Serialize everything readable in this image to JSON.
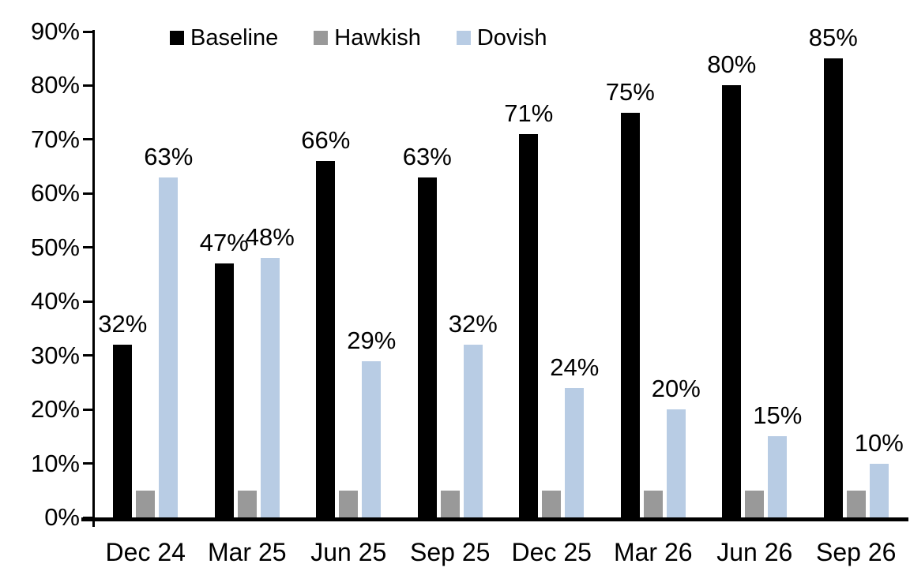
{
  "chart_data": {
    "type": "bar",
    "title": "",
    "categories": [
      "Dec 24",
      "Mar 25",
      "Jun 25",
      "Sep 25",
      "Dec 25",
      "Mar 26",
      "Jun 26",
      "Sep 26"
    ],
    "series": [
      {
        "name": "Baseline",
        "color": "#000000",
        "values": [
          32,
          47,
          66,
          63,
          71,
          75,
          80,
          85
        ],
        "data_labels": [
          "32%",
          "47%",
          "66%",
          "63%",
          "71%",
          "75%",
          "80%",
          "85%"
        ]
      },
      {
        "name": "Hawkish",
        "color": "#999999",
        "values": [
          5,
          5,
          5,
          5,
          5,
          5,
          5,
          5
        ],
        "data_labels": []
      },
      {
        "name": "Dovish",
        "color": "#B8CCE4",
        "values": [
          63,
          48,
          29,
          32,
          24,
          20,
          15,
          10
        ],
        "data_labels": [
          "63%",
          "48%",
          "29%",
          "32%",
          "24%",
          "20%",
          "15%",
          "10%"
        ]
      }
    ],
    "xlabel": "",
    "ylabel": "",
    "ylim": [
      0,
      90
    ],
    "ytick_step": 10,
    "ytick_labels": [
      "0%",
      "10%",
      "20%",
      "30%",
      "40%",
      "50%",
      "60%",
      "70%",
      "80%",
      "90%"
    ],
    "grid": false,
    "legend_position": "top",
    "axis_color": "#000000",
    "text_color": "#000000",
    "background_color": "#FFFFFF"
  }
}
